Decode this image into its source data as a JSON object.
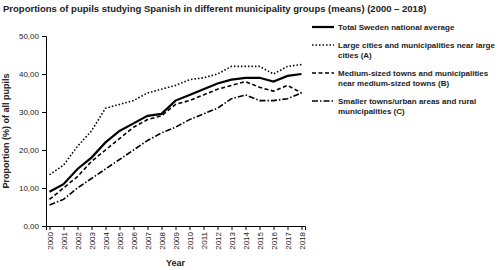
{
  "chart_data": {
    "type": "line",
    "title": "Proportions of pupils studying Spanish in different municipality groups (means) (2000 – 2018)",
    "x_label": "Year",
    "y_label": "Proportion (%) of all pupils",
    "categories": [
      "2000",
      "2001",
      "2002",
      "2003",
      "2004",
      "2005",
      "2006",
      "2007",
      "2008",
      "2009",
      "2010",
      "2011",
      "2012",
      "2013",
      "2014",
      "2015",
      "2016",
      "2017",
      "2018"
    ],
    "series": [
      {
        "name": "Total Sweden national average",
        "color": "#000000",
        "line_style": "solid",
        "values": [
          9,
          11,
          15,
          18,
          22,
          25,
          27,
          29,
          29.5,
          33,
          34.5,
          36,
          37.5,
          38.5,
          39,
          39,
          38,
          39.5,
          40
        ]
      },
      {
        "name": "Large cities and municipalities near large cities (A)",
        "color": "#000000",
        "line_style": "dotted",
        "values": [
          13.5,
          16,
          21,
          25,
          31,
          32,
          33,
          35,
          36,
          37,
          38.5,
          39,
          40,
          42,
          42,
          42,
          40,
          42,
          42.5
        ]
      },
      {
        "name": "Medium-sized towns and municipalities near medium-sized towns (B)",
        "color": "#000000",
        "line_style": "dashed",
        "values": [
          7,
          10,
          13,
          17,
          20,
          23,
          26,
          28,
          29,
          32,
          33,
          34.5,
          36,
          37,
          38,
          36.5,
          35.5,
          37,
          35
        ]
      },
      {
        "name": "Smaller towns/urban areas and rural municipalities (C)",
        "color": "#000000",
        "line_style": "dashdot",
        "values": [
          5.5,
          7,
          10,
          12.5,
          15,
          17.5,
          20,
          22.5,
          24.5,
          26,
          28,
          29.5,
          31,
          33.5,
          34.5,
          33,
          33,
          33.5,
          35
        ]
      }
    ],
    "ylim": [
      0,
      50
    ],
    "yticks": [
      {
        "value": 0,
        "label": "0,00"
      },
      {
        "value": 10,
        "label": "10,00"
      },
      {
        "value": 20,
        "label": "20,00"
      },
      {
        "value": 30,
        "label": "30,00"
      },
      {
        "value": 40,
        "label": "40,00"
      },
      {
        "value": 50,
        "label": "50,00"
      }
    ],
    "grid": false,
    "legend": "right"
  }
}
